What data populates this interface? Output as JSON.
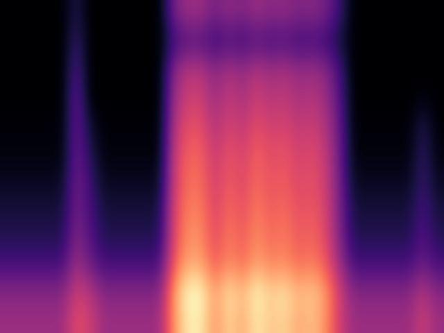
{
  "chart_data": {
    "type": "heatmap",
    "color": "magma",
    "tick_labels": false,
    "cells": [
      [
        0.03,
        0.03,
        0.03,
        0.03,
        0.03,
        0.15,
        0.03,
        0.03,
        0.03,
        0.03,
        0.03,
        0.03,
        0.32,
        0.4,
        0.4,
        0.32,
        0.38,
        0.34,
        0.4,
        0.36,
        0.38,
        0.34,
        0.36,
        0.32,
        0.2,
        0.03,
        0.03,
        0.03,
        0.03,
        0.03,
        0.03,
        0.03
      ],
      [
        0.03,
        0.03,
        0.03,
        0.03,
        0.03,
        0.2,
        0.03,
        0.03,
        0.03,
        0.03,
        0.03,
        0.03,
        0.2,
        0.25,
        0.25,
        0.2,
        0.24,
        0.21,
        0.25,
        0.22,
        0.24,
        0.21,
        0.22,
        0.2,
        0.12,
        0.03,
        0.03,
        0.03,
        0.03,
        0.03,
        0.03,
        0.03
      ],
      [
        0.03,
        0.03,
        0.03,
        0.03,
        0.03,
        0.25,
        0.03,
        0.03,
        0.03,
        0.03,
        0.03,
        0.03,
        0.36,
        0.45,
        0.45,
        0.36,
        0.43,
        0.38,
        0.45,
        0.4,
        0.43,
        0.38,
        0.4,
        0.36,
        0.22,
        0.03,
        0.03,
        0.03,
        0.03,
        0.03,
        0.03,
        0.03
      ],
      [
        0.03,
        0.03,
        0.03,
        0.03,
        0.03,
        0.3,
        0.03,
        0.03,
        0.03,
        0.03,
        0.03,
        0.03,
        0.4,
        0.5,
        0.5,
        0.4,
        0.48,
        0.42,
        0.5,
        0.45,
        0.48,
        0.42,
        0.45,
        0.4,
        0.25,
        0.03,
        0.03,
        0.03,
        0.03,
        0.03,
        0.05,
        0.03
      ],
      [
        0.04,
        0.04,
        0.04,
        0.04,
        0.04,
        0.3,
        0.1,
        0.04,
        0.04,
        0.04,
        0.04,
        0.04,
        0.44,
        0.55,
        0.55,
        0.44,
        0.52,
        0.47,
        0.55,
        0.5,
        0.52,
        0.47,
        0.5,
        0.44,
        0.28,
        0.04,
        0.04,
        0.04,
        0.04,
        0.04,
        0.15,
        0.04
      ],
      [
        0.05,
        0.05,
        0.05,
        0.05,
        0.05,
        0.3,
        0.15,
        0.05,
        0.05,
        0.05,
        0.05,
        0.05,
        0.48,
        0.6,
        0.6,
        0.48,
        0.57,
        0.51,
        0.6,
        0.54,
        0.57,
        0.51,
        0.54,
        0.48,
        0.3,
        0.05,
        0.05,
        0.05,
        0.05,
        0.05,
        0.18,
        0.05
      ],
      [
        0.08,
        0.08,
        0.08,
        0.08,
        0.08,
        0.32,
        0.2,
        0.08,
        0.08,
        0.08,
        0.08,
        0.08,
        0.5,
        0.62,
        0.62,
        0.5,
        0.59,
        0.53,
        0.62,
        0.56,
        0.59,
        0.53,
        0.56,
        0.5,
        0.31,
        0.08,
        0.08,
        0.08,
        0.08,
        0.08,
        0.2,
        0.08
      ],
      [
        0.12,
        0.12,
        0.12,
        0.12,
        0.12,
        0.32,
        0.22,
        0.12,
        0.12,
        0.12,
        0.12,
        0.12,
        0.52,
        0.65,
        0.65,
        0.52,
        0.62,
        0.55,
        0.65,
        0.58,
        0.62,
        0.55,
        0.58,
        0.52,
        0.33,
        0.12,
        0.12,
        0.12,
        0.12,
        0.12,
        0.22,
        0.12
      ],
      [
        0.15,
        0.15,
        0.15,
        0.15,
        0.15,
        0.35,
        0.25,
        0.15,
        0.15,
        0.15,
        0.15,
        0.15,
        0.54,
        0.68,
        0.68,
        0.54,
        0.65,
        0.58,
        0.68,
        0.61,
        0.65,
        0.58,
        0.61,
        0.54,
        0.34,
        0.15,
        0.15,
        0.15,
        0.15,
        0.15,
        0.25,
        0.15
      ],
      [
        0.22,
        0.22,
        0.22,
        0.22,
        0.22,
        0.4,
        0.3,
        0.22,
        0.22,
        0.22,
        0.22,
        0.22,
        0.58,
        0.72,
        0.72,
        0.58,
        0.68,
        0.61,
        0.72,
        0.65,
        0.68,
        0.61,
        0.65,
        0.58,
        0.4,
        0.22,
        0.22,
        0.22,
        0.22,
        0.22,
        0.3,
        0.22
      ],
      [
        0.35,
        0.35,
        0.35,
        0.35,
        0.35,
        0.5,
        0.45,
        0.35,
        0.35,
        0.35,
        0.35,
        0.35,
        0.7,
        0.88,
        0.88,
        0.7,
        0.84,
        0.75,
        0.88,
        0.79,
        0.84,
        0.75,
        0.79,
        0.7,
        0.5,
        0.35,
        0.35,
        0.35,
        0.35,
        0.35,
        0.45,
        0.35
      ],
      [
        0.4,
        0.4,
        0.4,
        0.4,
        0.4,
        0.55,
        0.5,
        0.4,
        0.4,
        0.4,
        0.4,
        0.4,
        0.68,
        0.85,
        0.85,
        0.68,
        0.81,
        0.72,
        0.85,
        0.77,
        0.81,
        0.72,
        0.77,
        0.68,
        0.5,
        0.4,
        0.4,
        0.4,
        0.4,
        0.4,
        0.5,
        0.4
      ]
    ]
  }
}
